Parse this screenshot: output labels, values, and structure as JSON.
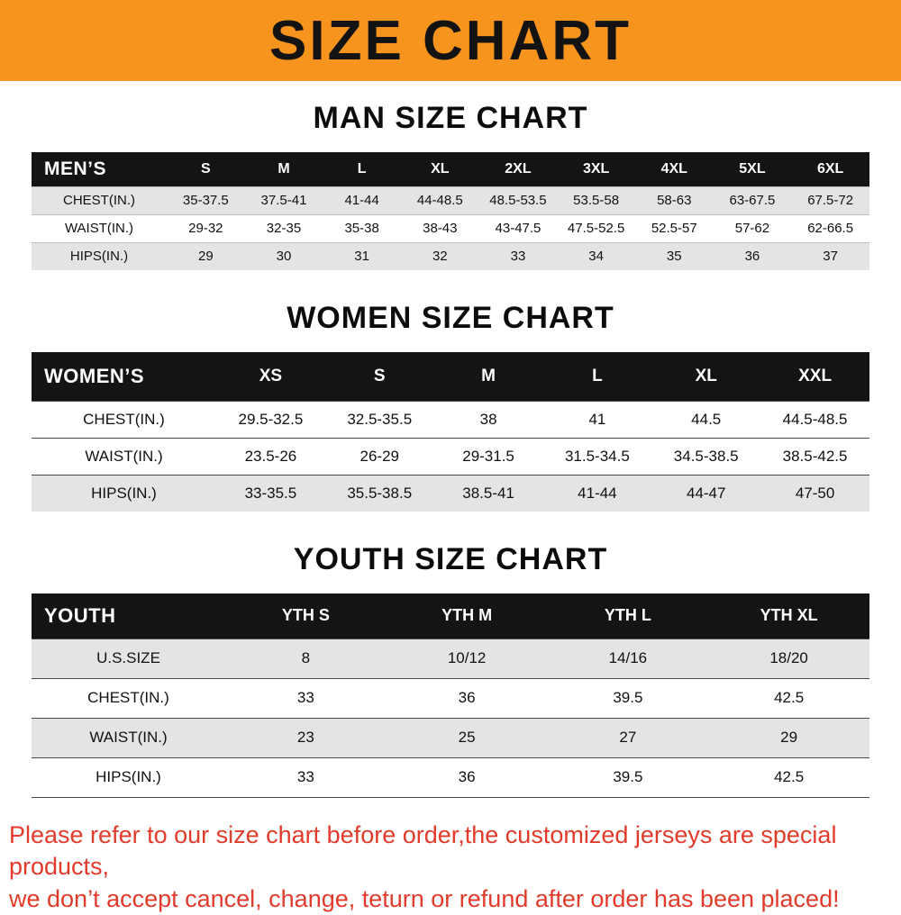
{
  "banner": {
    "title": "SIZE CHART",
    "bg_color": "#f7941d",
    "text_color": "#131313"
  },
  "sections": [
    {
      "heading": "MAN SIZE CHART",
      "table": {
        "label": "MEN’S",
        "columns": [
          "S",
          "M",
          "L",
          "XL",
          "2XL",
          "3XL",
          "4XL",
          "5XL",
          "6XL"
        ],
        "rows": [
          {
            "label": "CHEST(IN.)",
            "values": [
              "35-37.5",
              "37.5-41",
              "41-44",
              "44-48.5",
              "48.5-53.5",
              "53.5-58",
              "58-63",
              "63-67.5",
              "67.5-72"
            ]
          },
          {
            "label": "WAIST(IN.)",
            "values": [
              "29-32",
              "32-35",
              "35-38",
              "38-43",
              "43-47.5",
              "47.5-52.5",
              "52.5-57",
              "57-62",
              "62-66.5"
            ]
          },
          {
            "label": "HIPS(IN.)",
            "values": [
              "29",
              "30",
              "31",
              "32",
              "33",
              "34",
              "35",
              "36",
              "37"
            ]
          }
        ]
      }
    },
    {
      "heading": "WOMEN SIZE CHART",
      "table": {
        "label": "WOMEN’S",
        "columns": [
          "XS",
          "S",
          "M",
          "L",
          "XL",
          "XXL"
        ],
        "rows": [
          {
            "label": "CHEST(IN.)",
            "values": [
              "29.5-32.5",
              "32.5-35.5",
              "38",
              "41",
              "44.5",
              "44.5-48.5"
            ]
          },
          {
            "label": "WAIST(IN.)",
            "values": [
              "23.5-26",
              "26-29",
              "29-31.5",
              "31.5-34.5",
              "34.5-38.5",
              "38.5-42.5"
            ]
          },
          {
            "label": "HIPS(IN.)",
            "values": [
              "33-35.5",
              "35.5-38.5",
              "38.5-41",
              "41-44",
              "44-47",
              "47-50"
            ]
          }
        ]
      }
    },
    {
      "heading": "YOUTH SIZE CHART",
      "table": {
        "label": "YOUTH",
        "columns": [
          "YTH S",
          "YTH M",
          "YTH L",
          "YTH XL"
        ],
        "rows": [
          {
            "label": "U.S.SIZE",
            "values": [
              "8",
              "10/12",
              "14/16",
              "18/20"
            ]
          },
          {
            "label": "CHEST(IN.)",
            "values": [
              "33",
              "36",
              "39.5",
              "42.5"
            ]
          },
          {
            "label": "WAIST(IN.)",
            "values": [
              "23",
              "25",
              "27",
              "29"
            ]
          },
          {
            "label": "HIPS(IN.)",
            "values": [
              "33",
              "36",
              "39.5",
              "42.5"
            ]
          }
        ]
      }
    }
  ],
  "footer": {
    "lines": [
      "Please refer to our size chart before order,the customized jerseys are special products,",
      "we don’t accept cancel, change, teturn or refund after order has been placed!"
    ],
    "color": "#e23b2b"
  }
}
